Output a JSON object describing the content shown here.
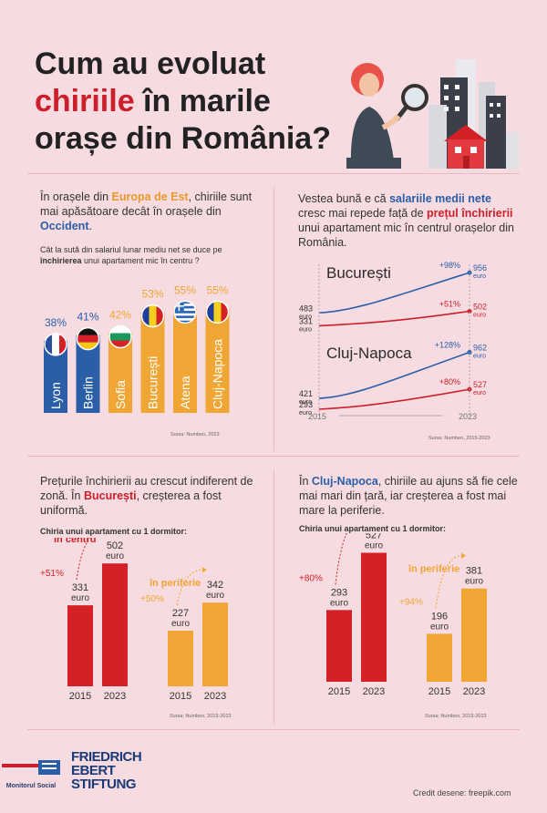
{
  "title": {
    "line1": "Cum au evoluat",
    "line2_red": "chiriile",
    "line2_rest": " în marile",
    "line3": "orașe din România?"
  },
  "colors": {
    "red": "#cc1f2b",
    "blue": "#2a5fa8",
    "orange": "#f0a634",
    "dark_red": "#d42127",
    "text": "#2b2b2b",
    "pink_bg": "#f6dbe1"
  },
  "illustration": {
    "icon": "woman-with-magnifier-and-buildings-illustration"
  },
  "section1": {
    "intro_pre": "În orașele din ",
    "intro_highlight1": "Europa de Est",
    "intro_mid": ", chiriile sunt mai apăsătoare decât în orașele din ",
    "intro_highlight2": "Occident",
    "intro_end": ".",
    "question_pre": "Cât la sută din salariul lunar mediu net se duce pe ",
    "question_bold": "închirierea",
    "question_post": " unui apartament mic în centru ?",
    "source": "Sursa: Numbeo, 2023"
  },
  "section2": {
    "intro_pre": "Vestea bună e că ",
    "intro_highlight1": "salariile medii nete",
    "intro_mid": " cresc mai repede față de ",
    "intro_highlight2": "prețul închirierii",
    "intro_end": " unui apartament mic în centrul orașelor din România.",
    "source": "Sursa: Numbeo, 2015-2023"
  },
  "section3": {
    "intro_pre": "Prețurile închirierii au crescut indiferent de zonă. În ",
    "intro_bold": "București",
    "intro_end": ", creșterea a fost uniformă.",
    "subtitle": "Chiria unui apartament cu 1 dormitor:",
    "source": "Sursa: Numbeo, 2015-2023"
  },
  "section4": {
    "intro_pre": "În ",
    "intro_bold": "Cluj-Napoca",
    "intro_end": ", chiriile au ajuns să fie cele mai mari din țară, iar creșterea a fost mai mare la periferie.",
    "subtitle": "Chiria unui apartament cu 1 dormitor:",
    "source": "Sursa: Numbeo, 2015-2023"
  },
  "footer": {
    "logo1": "Monitorul Social",
    "logo2_line1": "FRIEDRICH",
    "logo2_line2": "EBERT",
    "logo2_line3": "STIFTUNG",
    "credit": "Credit desene: freepik.com"
  },
  "chart_data": [
    {
      "type": "bar",
      "categories": [
        "Lyon",
        "Berlin",
        "Sofia",
        "București",
        "Atena",
        "Cluj-Napoca"
      ],
      "values": [
        38,
        41,
        42,
        53,
        55,
        55
      ],
      "value_labels": [
        "38%",
        "41%",
        "42%",
        "53%",
        "55%",
        "55%"
      ],
      "bar_colors": [
        "#2a5fa8",
        "#2a5fa8",
        "#f0a634",
        "#f0a634",
        "#f0a634",
        "#f0a634"
      ],
      "flags": [
        "france-flag-icon",
        "germany-flag-icon",
        "bulgaria-flag-icon",
        "romania-flag-icon",
        "greece-flag-icon",
        "romania-flag-icon"
      ],
      "ylim": [
        0,
        60
      ]
    },
    {
      "type": "line",
      "title": "București",
      "x": [
        "2015",
        "2023"
      ],
      "series": [
        {
          "values": [
            483,
            956
          ],
          "labels": [
            "483 euro",
            "956 euro"
          ],
          "growth": "+98%",
          "color": "#2a5fa8"
        },
        {
          "values": [
            331,
            502
          ],
          "labels": [
            "331 euro",
            "502 euro"
          ],
          "growth": "+51%",
          "color": "#cc1f2b"
        }
      ]
    },
    {
      "type": "line",
      "title": "Cluj-Napoca",
      "x": [
        "2015",
        "2023"
      ],
      "series": [
        {
          "values": [
            421,
            962
          ],
          "labels": [
            "421 euro",
            "962 euro"
          ],
          "growth": "+128%",
          "color": "#2a5fa8"
        },
        {
          "values": [
            293,
            527
          ],
          "labels": [
            "293 euro",
            "527 euro"
          ],
          "growth": "+80%",
          "color": "#cc1f2b"
        }
      ]
    },
    {
      "type": "bar",
      "groups": [
        {
          "label": "în centru",
          "color": "#d42127",
          "growth": "+51%",
          "categories": [
            "2015",
            "2023"
          ],
          "values": [
            331,
            502
          ],
          "value_labels": [
            "331 euro",
            "502 euro"
          ]
        },
        {
          "label": "în periferie",
          "color": "#f0a634",
          "growth": "+50%",
          "categories": [
            "2015",
            "2023"
          ],
          "values": [
            227,
            342
          ],
          "value_labels": [
            "227 euro",
            "342 euro"
          ]
        }
      ],
      "ylim": [
        0,
        540
      ]
    },
    {
      "type": "bar",
      "groups": [
        {
          "label": "în centru",
          "color": "#d42127",
          "growth": "+80%",
          "categories": [
            "2015",
            "2023"
          ],
          "values": [
            293,
            527
          ],
          "value_labels": [
            "293 euro",
            "527 euro"
          ]
        },
        {
          "label": "în periferie",
          "color": "#f0a634",
          "growth": "+94%",
          "categories": [
            "2015",
            "2023"
          ],
          "values": [
            196,
            381
          ],
          "value_labels": [
            "196 euro",
            "381 euro"
          ]
        }
      ],
      "ylim": [
        0,
        540
      ]
    }
  ]
}
